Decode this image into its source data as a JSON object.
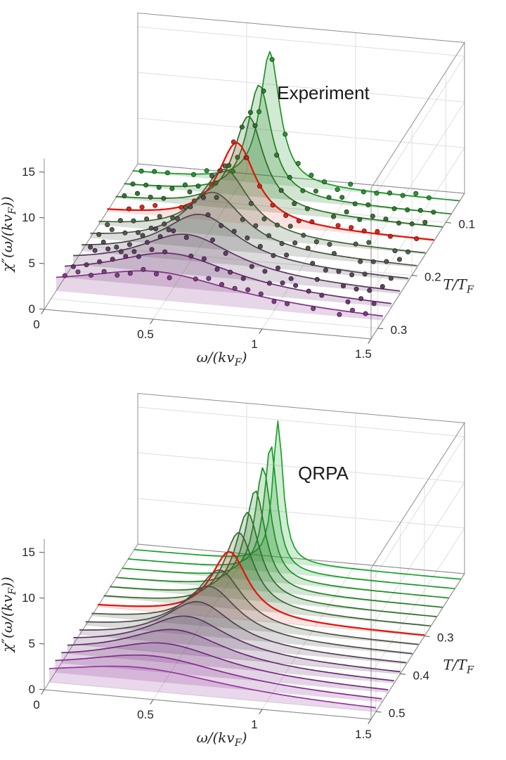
{
  "figure": {
    "background": "#ffffff",
    "panel_titles": [
      "Experiment",
      "QRPA"
    ]
  },
  "chart_data": [
    {
      "type": "line",
      "variant": "3d-waterfall",
      "title": "Experiment",
      "xlabel": "ω/(kv_F)",
      "ylabel": "T/T_F",
      "zlabel": "χ″(ω/(kv_F))",
      "x_range": [
        0,
        1.5
      ],
      "z_range": [
        0,
        16.5
      ],
      "x_tick_values": [
        0,
        0.5,
        1,
        1.5
      ],
      "x_ticks": [
        "0",
        "0.5",
        "1",
        "1.5"
      ],
      "z_tick_values": [
        0,
        5,
        10,
        15
      ],
      "z_ticks": [
        "0",
        "5",
        "10",
        "15"
      ],
      "t_tick_values": [
        0.1,
        0.2,
        0.3
      ],
      "t_ticks": [
        "0.1",
        "0.2",
        "0.3"
      ],
      "t_axis_front": 0.32,
      "t_axis_back": 0.045,
      "grid": true,
      "legend": "none",
      "model": "lorentzian: z(x) = peak*width^2/((x-center)^2+width^2)",
      "highlight_color": "#e3170d",
      "has_scatter_points": true,
      "scatter": {
        "x_start": 0.04,
        "x_step": 0.06,
        "noise": 0.5,
        "seed": 11,
        "radius": 3.2
      },
      "series": [
        {
          "t_over_tf": 0.06,
          "peak": 14.5,
          "center": 0.63,
          "width": 0.055,
          "color": "#1d9426",
          "highlight": false
        },
        {
          "t_over_tf": 0.085,
          "peak": 12.3,
          "center": 0.62,
          "width": 0.068,
          "color": "#207f22",
          "highlight": false
        },
        {
          "t_over_tf": 0.11,
          "peak": 10.3,
          "center": 0.61,
          "width": 0.085,
          "color": "#2a6f26",
          "highlight": false
        },
        {
          "t_over_tf": 0.135,
          "peak": 8.8,
          "center": 0.595,
          "width": 0.105,
          "color": "#e3170d",
          "highlight": true
        },
        {
          "t_over_tf": 0.16,
          "peak": 7.3,
          "center": 0.58,
          "width": 0.135,
          "color": "#44603c",
          "highlight": false
        },
        {
          "t_over_tf": 0.185,
          "peak": 6.2,
          "center": 0.565,
          "width": 0.17,
          "color": "#4b5345",
          "highlight": false
        },
        {
          "t_over_tf": 0.21,
          "peak": 5.2,
          "center": 0.545,
          "width": 0.215,
          "color": "#4f4450",
          "highlight": false
        },
        {
          "t_over_tf": 0.235,
          "peak": 4.4,
          "center": 0.52,
          "width": 0.275,
          "color": "#5a365e",
          "highlight": false
        },
        {
          "t_over_tf": 0.26,
          "peak": 3.7,
          "center": 0.49,
          "width": 0.35,
          "color": "#6a2d70",
          "highlight": false
        },
        {
          "t_over_tf": 0.285,
          "peak": 3.1,
          "center": 0.46,
          "width": 0.44,
          "color": "#813386",
          "highlight": false
        }
      ]
    },
    {
      "type": "line",
      "variant": "3d-waterfall",
      "title": "QRPA",
      "xlabel": "ω/(kv_F)",
      "ylabel": "T/T_F",
      "zlabel": "χ″(ω/(kv_F))",
      "x_range": [
        0,
        1.5
      ],
      "z_range": [
        0,
        16.5
      ],
      "x_tick_values": [
        0,
        0.5,
        1,
        1.5
      ],
      "x_ticks": [
        "0",
        "0.5",
        "1",
        "1.5"
      ],
      "z_tick_values": [
        0,
        5,
        10,
        15
      ],
      "z_ticks": [
        "0",
        "5",
        "10",
        "15"
      ],
      "t_tick_values": [
        0.3,
        0.4,
        0.5
      ],
      "t_ticks": [
        "0.3",
        "0.4",
        "0.5"
      ],
      "t_axis_front": 0.52,
      "t_axis_back": 0.135,
      "grid": true,
      "legend": "none",
      "model": "lorentzian: z(x) = peak*width^2/((x-center)^2+width^2)",
      "highlight_color": "#e3170d",
      "has_scatter_points": false,
      "series": [
        {
          "t_over_tf": 0.15,
          "peak": 15.5,
          "center": 0.66,
          "width": 0.028,
          "color": "#17a32a",
          "highlight": false
        },
        {
          "t_over_tf": 0.175,
          "peak": 14.0,
          "center": 0.655,
          "width": 0.035,
          "color": "#189a27",
          "highlight": false
        },
        {
          "t_over_tf": 0.2,
          "peak": 12.5,
          "center": 0.648,
          "width": 0.044,
          "color": "#1e8e25",
          "highlight": false
        },
        {
          "t_over_tf": 0.225,
          "peak": 11.0,
          "center": 0.64,
          "width": 0.055,
          "color": "#257f26",
          "highlight": false
        },
        {
          "t_over_tf": 0.25,
          "peak": 9.6,
          "center": 0.632,
          "width": 0.068,
          "color": "#2e7028",
          "highlight": false
        },
        {
          "t_over_tf": 0.275,
          "peak": 8.4,
          "center": 0.62,
          "width": 0.085,
          "color": "#3c622f",
          "highlight": false
        },
        {
          "t_over_tf": 0.3,
          "peak": 7.3,
          "center": 0.605,
          "width": 0.105,
          "color": "#e3170d",
          "highlight": true
        },
        {
          "t_over_tf": 0.325,
          "peak": 6.3,
          "center": 0.588,
          "width": 0.13,
          "color": "#4c5340",
          "highlight": false
        },
        {
          "t_over_tf": 0.35,
          "peak": 5.5,
          "center": 0.568,
          "width": 0.16,
          "color": "#504a4a",
          "highlight": false
        },
        {
          "t_over_tf": 0.375,
          "peak": 4.8,
          "center": 0.545,
          "width": 0.195,
          "color": "#543f55",
          "highlight": false
        },
        {
          "t_over_tf": 0.4,
          "peak": 4.2,
          "center": 0.52,
          "width": 0.24,
          "color": "#5b3263",
          "highlight": false
        },
        {
          "t_over_tf": 0.425,
          "peak": 3.7,
          "center": 0.495,
          "width": 0.29,
          "color": "#662b70",
          "highlight": false
        },
        {
          "t_over_tf": 0.45,
          "peak": 3.2,
          "center": 0.468,
          "width": 0.35,
          "color": "#74297d",
          "highlight": false
        },
        {
          "t_over_tf": 0.475,
          "peak": 2.8,
          "center": 0.44,
          "width": 0.42,
          "color": "#832e8c",
          "highlight": false
        },
        {
          "t_over_tf": 0.5,
          "peak": 2.5,
          "center": 0.41,
          "width": 0.5,
          "color": "#92389b",
          "highlight": false
        }
      ]
    }
  ]
}
